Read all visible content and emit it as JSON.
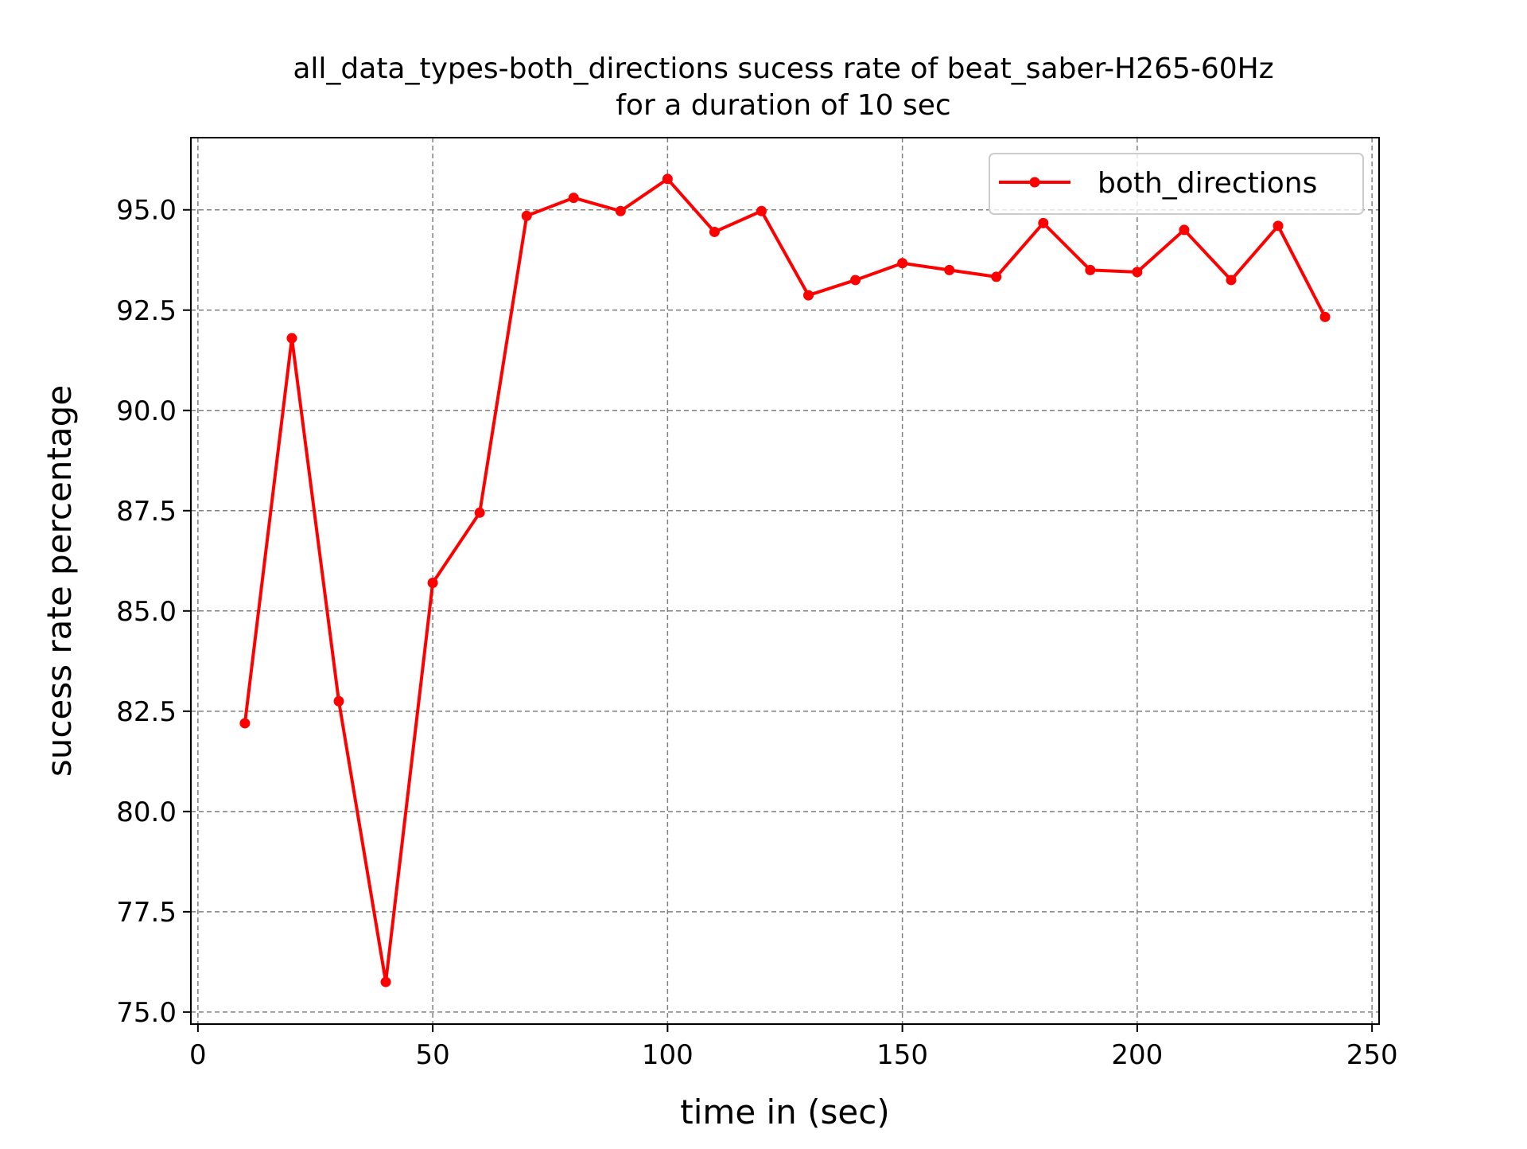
{
  "chart_data": {
    "type": "line",
    "title": "all_data_types-both_directions sucess rate of beat_saber-H265-60Hz",
    "subtitle": "for a duration of 10 sec",
    "xlabel": "time in (sec)",
    "ylabel": "sucess rate percentage",
    "xlim": [
      -1.5,
      251.5
    ],
    "ylim": [
      74.7,
      96.8
    ],
    "x_ticks": [
      0,
      50,
      100,
      150,
      200,
      250
    ],
    "y_ticks": [
      75.0,
      77.5,
      80.0,
      82.5,
      85.0,
      87.5,
      90.0,
      92.5,
      95.0
    ],
    "x_tick_labels": [
      "0",
      "50",
      "100",
      "150",
      "200",
      "250"
    ],
    "y_tick_labels": [
      "75.0",
      "77.5",
      "80.0",
      "82.5",
      "85.0",
      "87.5",
      "90.0",
      "92.5",
      "95.0"
    ],
    "grid": true,
    "legend_position": "upper right",
    "series": [
      {
        "name": "both_directions",
        "color": "#ff0000",
        "marker": "circle",
        "x": [
          10,
          20,
          30,
          40,
          50,
          60,
          70,
          80,
          90,
          100,
          110,
          120,
          130,
          140,
          150,
          160,
          170,
          180,
          190,
          200,
          210,
          220,
          230,
          240
        ],
        "y": [
          82.2,
          91.8,
          82.75,
          75.75,
          85.7,
          87.45,
          94.85,
          95.3,
          94.97,
          95.77,
          94.45,
          94.97,
          92.87,
          93.25,
          93.67,
          93.5,
          93.33,
          94.67,
          93.5,
          93.45,
          94.5,
          93.25,
          94.6,
          92.33
        ]
      }
    ]
  }
}
